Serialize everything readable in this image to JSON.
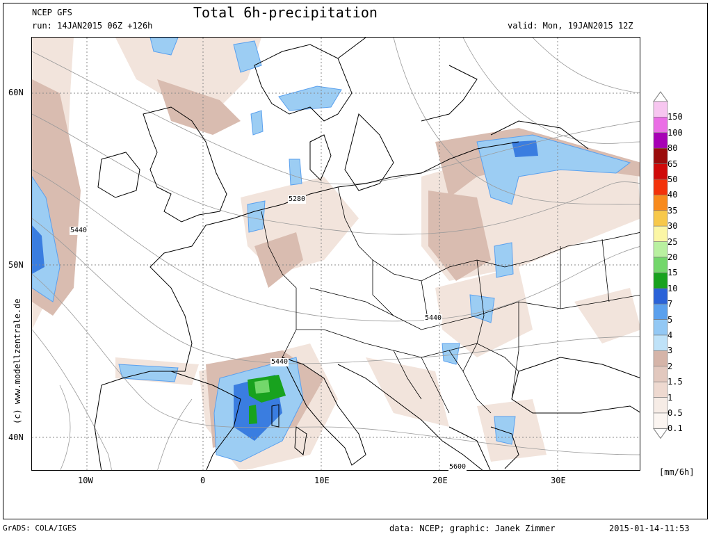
{
  "header": {
    "model": "NCEP GFS",
    "run": "run: 14JAN2015 06Z +126h",
    "title": "Total 6h-precipitation",
    "valid": "valid: Mon, 19JAN2015 12Z"
  },
  "axes": {
    "lat_labels": [
      "60N",
      "50N",
      "40N"
    ],
    "lon_labels": [
      "10W",
      "0",
      "10E",
      "20E",
      "30E"
    ]
  },
  "contour_labels": [
    "5440",
    "5280",
    "5440",
    "5440",
    "5600"
  ],
  "legend": {
    "unit": "[mm/6h]",
    "entries": [
      {
        "label": "150",
        "color": "#f7c6f0"
      },
      {
        "label": "100",
        "color": "#ea6ee5"
      },
      {
        "label": "80",
        "color": "#a700b5"
      },
      {
        "label": "65",
        "color": "#9b0c0c"
      },
      {
        "label": "50",
        "color": "#cf0a0a"
      },
      {
        "label": "40",
        "color": "#f3320a"
      },
      {
        "label": "35",
        "color": "#f88a1c"
      },
      {
        "label": "30",
        "color": "#f7c84a"
      },
      {
        "label": "25",
        "color": "#fbf6a5"
      },
      {
        "label": "20",
        "color": "#b9f0a0"
      },
      {
        "label": "15",
        "color": "#73d76b"
      },
      {
        "label": "10",
        "color": "#18a21e"
      },
      {
        "label": "7",
        "color": "#2a62d8"
      },
      {
        "label": "5",
        "color": "#5aa0ee"
      },
      {
        "label": "4",
        "color": "#93c8f4"
      },
      {
        "label": "3",
        "color": "#bfe2f8"
      },
      {
        "label": "2",
        "color": "#d5b4a8"
      },
      {
        "label": "1.5",
        "color": "#e2c8be"
      },
      {
        "label": "1",
        "color": "#eed9d0"
      },
      {
        "label": "0.5",
        "color": "#f6ece6"
      },
      {
        "label": "0.1",
        "color": "#fbf5f1"
      }
    ]
  },
  "footer": {
    "left": "GrADS: COLA/IGES",
    "credits": "data: NCEP; graphic: Janek Zimmer",
    "timestamp": "2015-01-14-11:53"
  },
  "watermark": "(c) www.modellzentrale.de"
}
